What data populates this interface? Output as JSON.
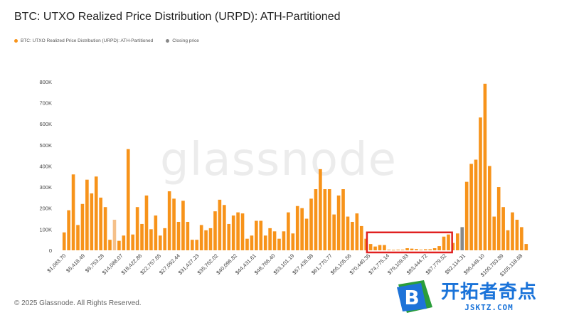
{
  "title": "BTC: UTXO Realized Price Distribution (URPD): ATH-Partitioned",
  "legend": {
    "series_label": "BTC: UTXO Realized Price Distribution (URPD): ATH-Partitioned",
    "closing_label": "Closing price",
    "series_color": "#f7931a",
    "closing_color": "#888888"
  },
  "footer": "© 2025 Glassnode. All Rights Reserved.",
  "watermark": "glassnode",
  "brand": {
    "cn": "开拓者奇点",
    "url": "JSKTZ.COM",
    "logo_letter": "B"
  },
  "chart_data": {
    "type": "bar",
    "ylim": [
      0,
      850000
    ],
    "yticks": [
      0,
      100000,
      200000,
      300000,
      400000,
      500000,
      600000,
      700000,
      800000
    ],
    "ytick_labels": [
      "0",
      "100K",
      "200K",
      "300K",
      "400K",
      "500K",
      "600K",
      "700K",
      "800K"
    ],
    "xtick_labels": [
      "$1,083.70",
      "$5,418.49",
      "$9,753.28",
      "$14,088.07",
      "$18,422.86",
      "$22,757.65",
      "$27,092.44",
      "$31,427.23",
      "$35,762.02",
      "$40,096.82",
      "$44,431.61",
      "$48,766.40",
      "$53,101.19",
      "$57,435.98",
      "$61,770.77",
      "$66,105.56",
      "$70,440.35",
      "$74,775.14",
      "$79,109.93",
      "$83,444.72",
      "$87,779.52",
      "$92,114.31",
      "$96,449.10",
      "$100,783.89",
      "$105,118.68"
    ],
    "values": [
      85000,
      190000,
      360000,
      120000,
      220000,
      335000,
      270000,
      350000,
      250000,
      205000,
      50000,
      145000,
      45000,
      70000,
      480000,
      75000,
      205000,
      125000,
      260000,
      100000,
      165000,
      70000,
      105000,
      280000,
      245000,
      135000,
      235000,
      135000,
      50000,
      50000,
      120000,
      95000,
      105000,
      185000,
      240000,
      215000,
      125000,
      165000,
      180000,
      175000,
      55000,
      70000,
      140000,
      140000,
      70000,
      105000,
      90000,
      55000,
      90000,
      180000,
      80000,
      210000,
      200000,
      150000,
      245000,
      290000,
      385000,
      290000,
      290000,
      170000,
      260000,
      290000,
      160000,
      135000,
      175000,
      115000,
      55000,
      30000,
      18000,
      25000,
      25000,
      3000,
      2000,
      3000,
      3000,
      10000,
      8000,
      6000,
      3000,
      5000,
      5000,
      10000,
      20000,
      65000,
      75000,
      35000,
      80000,
      110000,
      325000,
      410000,
      430000,
      630000,
      790000,
      400000,
      160000,
      300000,
      205000,
      95000,
      180000,
      145000,
      110000,
      30000
    ],
    "series_colors": {
      "default": "#f7931a",
      "light": "#f5c089",
      "closing": "#888888"
    },
    "light_indices": [
      11
    ],
    "closing_index": 87,
    "annotation": {
      "type": "highlight-box",
      "from_index": 67,
      "to_index": 84,
      "color": "#e02020"
    }
  }
}
